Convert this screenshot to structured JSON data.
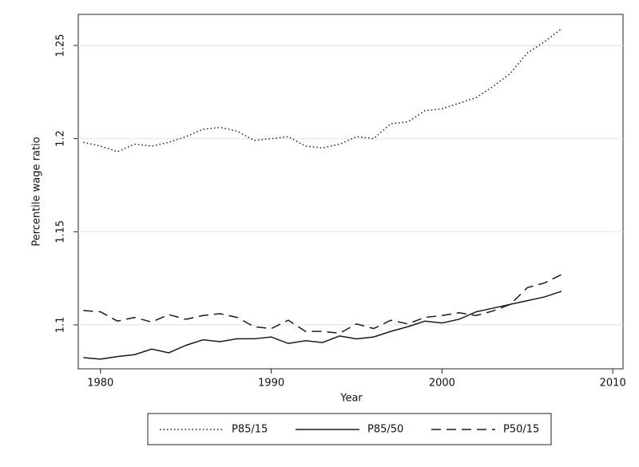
{
  "chart_data": {
    "type": "line",
    "x_label": "Year",
    "y_label": "Percentile wage ratio",
    "x": [
      1979,
      1980,
      1981,
      1982,
      1983,
      1984,
      1985,
      1986,
      1987,
      1988,
      1989,
      1990,
      1991,
      1992,
      1993,
      1994,
      1995,
      1996,
      1997,
      1998,
      1999,
      2000,
      2001,
      2002,
      2003,
      2004,
      2005,
      2006,
      2007
    ],
    "series": [
      {
        "name": "P85/15",
        "color": "#1a1a1a",
        "line_style": "dotted",
        "values": [
          1.198,
          1.196,
          1.193,
          1.197,
          1.196,
          1.198,
          1.201,
          1.205,
          1.206,
          1.204,
          1.199,
          1.2,
          1.201,
          1.196,
          1.195,
          1.197,
          1.201,
          1.2,
          1.208,
          1.209,
          1.215,
          1.216,
          1.219,
          1.222,
          1.228,
          1.235,
          1.246,
          1.252,
          1.259
        ]
      },
      {
        "name": "P85/50",
        "color": "#1a1a1a",
        "line_style": "solid",
        "values": [
          1.0824,
          1.0816,
          1.083,
          1.084,
          1.087,
          1.085,
          1.089,
          1.092,
          1.091,
          1.0925,
          1.0925,
          1.0935,
          1.09,
          1.0915,
          1.0905,
          1.094,
          1.0925,
          1.0935,
          1.0965,
          1.099,
          1.102,
          1.101,
          1.103,
          1.107,
          1.109,
          1.111,
          1.113,
          1.115,
          1.118
        ]
      },
      {
        "name": "P50/15",
        "color": "#1a1a1a",
        "line_style": "dashed",
        "values": [
          1.1077,
          1.107,
          1.102,
          1.104,
          1.1015,
          1.1055,
          1.103,
          1.105,
          1.106,
          1.104,
          1.099,
          1.098,
          1.1025,
          1.0965,
          1.0965,
          1.0955,
          1.1005,
          1.098,
          1.1025,
          1.1005,
          1.104,
          1.105,
          1.1065,
          1.105,
          1.1075,
          1.111,
          1.12,
          1.1225,
          1.127
        ]
      }
    ],
    "xlim": [
      1978.7,
      2010.6
    ],
    "xticks": [
      1980,
      1990,
      2000,
      2010
    ],
    "ylim": [
      1.0764,
      1.2667
    ],
    "yticks": [
      1.1,
      1.15,
      1.2,
      1.25
    ],
    "grid": true,
    "legend_position": "bottom"
  }
}
